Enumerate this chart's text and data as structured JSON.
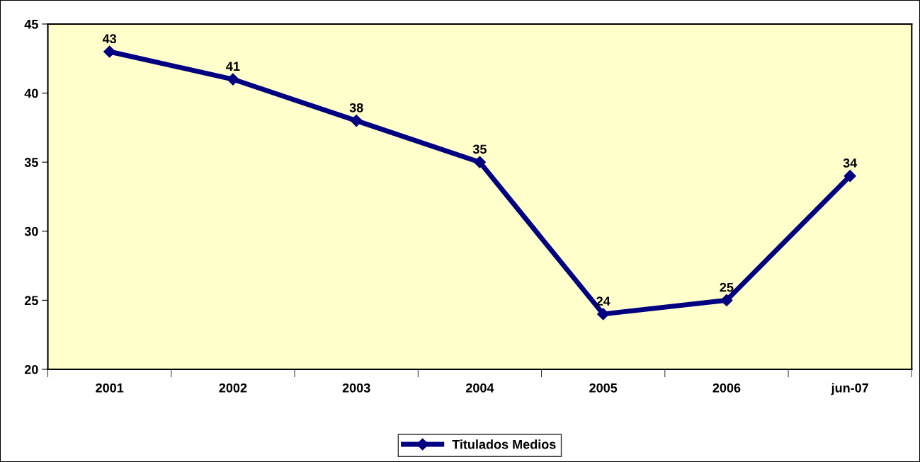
{
  "chart_data": {
    "type": "line",
    "categories": [
      "2001",
      "2002",
      "2003",
      "2004",
      "2005",
      "2006",
      "jun-07"
    ],
    "series": [
      {
        "name": "Titulados Medios",
        "color": "#000080",
        "values": [
          43,
          41,
          38,
          35,
          24,
          25,
          34
        ]
      }
    ],
    "ylim": [
      20,
      45
    ],
    "yticks": [
      20,
      25,
      30,
      35,
      40,
      45
    ],
    "marker": "diamond",
    "line_style": "solid",
    "data_labels": true,
    "legend": "bottom",
    "grid": false
  }
}
